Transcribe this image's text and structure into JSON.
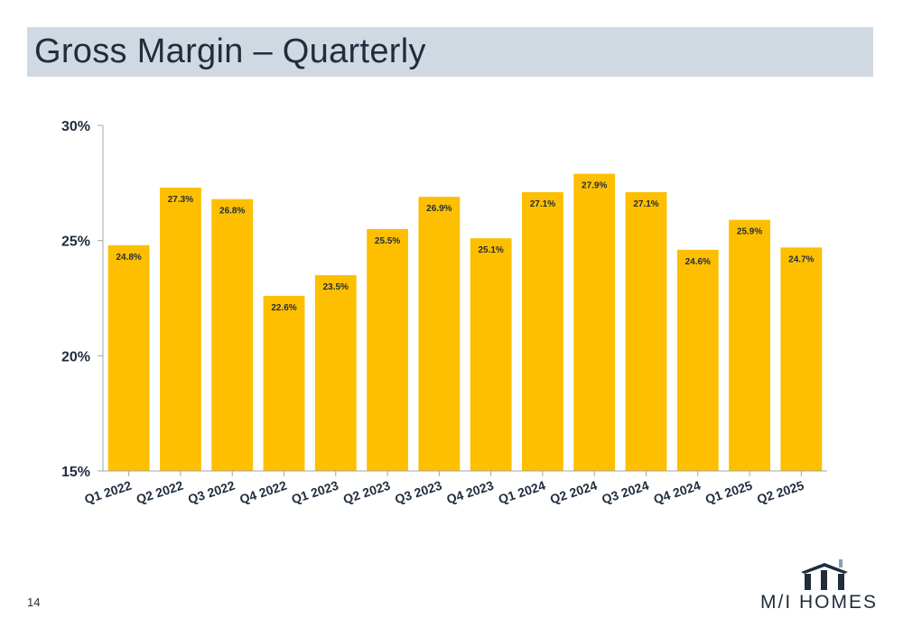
{
  "header": {
    "title": "Gross Margin – Quarterly"
  },
  "footer": {
    "page_number": "14"
  },
  "logo": {
    "text": "M/I HOMES",
    "icon": "house-roof-icon"
  },
  "colors": {
    "bar": "#fdbf00",
    "axis": "#a6a6a6",
    "text": "#1f2d3d",
    "title_bg": "#d0d9e1"
  },
  "chart_data": {
    "type": "bar",
    "title": "",
    "xlabel": "",
    "ylabel": "",
    "ylim": [
      15,
      30
    ],
    "yticks": [
      15,
      20,
      25,
      30
    ],
    "ytick_labels": [
      "15%",
      "20%",
      "25%",
      "30%"
    ],
    "grid": false,
    "categories": [
      "Q1 2022",
      "Q2 2022",
      "Q3 2022",
      "Q4 2022",
      "Q1 2023",
      "Q2 2023",
      "Q3 2023",
      "Q4 2023",
      "Q1 2024",
      "Q2 2024",
      "Q3 2024",
      "Q4 2024",
      "Q1 2025",
      "Q2 2025"
    ],
    "values": [
      24.8,
      27.3,
      26.8,
      22.6,
      23.5,
      25.5,
      26.9,
      25.1,
      27.1,
      27.9,
      27.1,
      24.6,
      25.9,
      24.7
    ],
    "data_labels": [
      "24.8%",
      "27.3%",
      "26.8%",
      "22.6%",
      "23.5%",
      "25.5%",
      "26.9%",
      "25.1%",
      "27.1%",
      "27.9%",
      "27.1%",
      "24.6%",
      "25.9%",
      "24.7%"
    ]
  }
}
